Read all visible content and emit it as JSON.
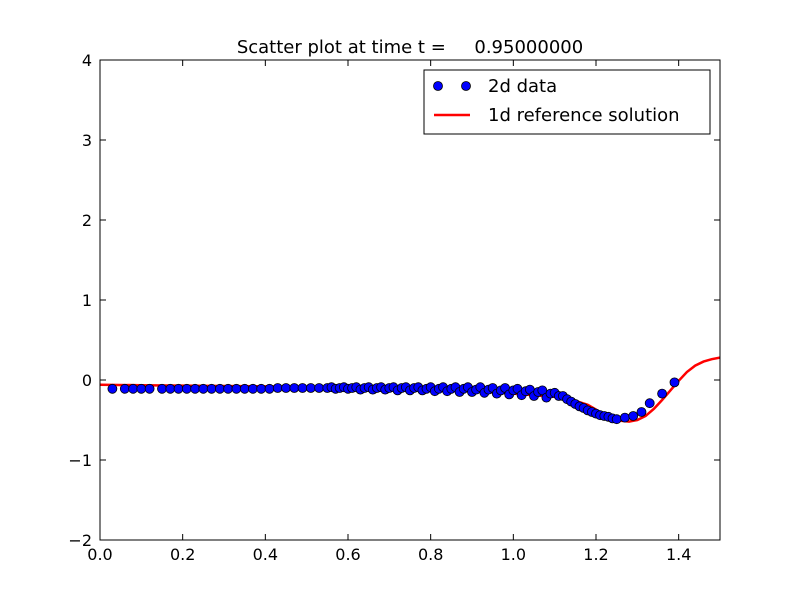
{
  "chart_data": {
    "type": "scatter",
    "title": "Scatter plot at time t =     0.95000000",
    "xlabel": "",
    "ylabel": "",
    "xlim": [
      0.0,
      1.5
    ],
    "ylim": [
      -2,
      4
    ],
    "xticks": [
      0.0,
      0.2,
      0.4,
      0.6,
      0.8,
      1.0,
      1.2,
      1.4
    ],
    "xtick_labels": [
      "0.0",
      "0.2",
      "0.4",
      "0.6",
      "0.8",
      "1.0",
      "1.2",
      "1.4"
    ],
    "yticks": [
      -2,
      -1,
      0,
      1,
      2,
      3,
      4
    ],
    "ytick_labels": [
      "−2",
      "−1",
      "0",
      "1",
      "2",
      "3",
      "4"
    ],
    "grid": false,
    "legend_position": "top-right",
    "series": [
      {
        "name": "2d data",
        "kind": "scatter",
        "color": "#0000ff",
        "points": [
          [
            0.03,
            -0.11
          ],
          [
            0.06,
            -0.11
          ],
          [
            0.08,
            -0.11
          ],
          [
            0.1,
            -0.11
          ],
          [
            0.12,
            -0.11
          ],
          [
            0.15,
            -0.11
          ],
          [
            0.17,
            -0.11
          ],
          [
            0.19,
            -0.11
          ],
          [
            0.21,
            -0.11
          ],
          [
            0.23,
            -0.11
          ],
          [
            0.25,
            -0.11
          ],
          [
            0.27,
            -0.11
          ],
          [
            0.29,
            -0.11
          ],
          [
            0.31,
            -0.11
          ],
          [
            0.33,
            -0.11
          ],
          [
            0.35,
            -0.11
          ],
          [
            0.37,
            -0.11
          ],
          [
            0.39,
            -0.11
          ],
          [
            0.41,
            -0.11
          ],
          [
            0.43,
            -0.1
          ],
          [
            0.45,
            -0.1
          ],
          [
            0.47,
            -0.1
          ],
          [
            0.49,
            -0.1
          ],
          [
            0.51,
            -0.1
          ],
          [
            0.53,
            -0.1
          ],
          [
            0.55,
            -0.1
          ],
          [
            0.56,
            -0.09
          ],
          [
            0.57,
            -0.11
          ],
          [
            0.58,
            -0.1
          ],
          [
            0.59,
            -0.09
          ],
          [
            0.6,
            -0.11
          ],
          [
            0.61,
            -0.1
          ],
          [
            0.62,
            -0.09
          ],
          [
            0.63,
            -0.12
          ],
          [
            0.64,
            -0.1
          ],
          [
            0.65,
            -0.09
          ],
          [
            0.66,
            -0.12
          ],
          [
            0.67,
            -0.1
          ],
          [
            0.68,
            -0.09
          ],
          [
            0.69,
            -0.12
          ],
          [
            0.7,
            -0.1
          ],
          [
            0.71,
            -0.09
          ],
          [
            0.72,
            -0.13
          ],
          [
            0.73,
            -0.1
          ],
          [
            0.74,
            -0.09
          ],
          [
            0.75,
            -0.13
          ],
          [
            0.76,
            -0.1
          ],
          [
            0.77,
            -0.09
          ],
          [
            0.78,
            -0.13
          ],
          [
            0.79,
            -0.11
          ],
          [
            0.8,
            -0.09
          ],
          [
            0.81,
            -0.14
          ],
          [
            0.82,
            -0.11
          ],
          [
            0.83,
            -0.09
          ],
          [
            0.84,
            -0.14
          ],
          [
            0.85,
            -0.11
          ],
          [
            0.86,
            -0.09
          ],
          [
            0.87,
            -0.15
          ],
          [
            0.88,
            -0.11
          ],
          [
            0.89,
            -0.09
          ],
          [
            0.9,
            -0.15
          ],
          [
            0.91,
            -0.12
          ],
          [
            0.92,
            -0.09
          ],
          [
            0.93,
            -0.16
          ],
          [
            0.94,
            -0.12
          ],
          [
            0.95,
            -0.1
          ],
          [
            0.96,
            -0.17
          ],
          [
            0.97,
            -0.13
          ],
          [
            0.98,
            -0.1
          ],
          [
            0.99,
            -0.18
          ],
          [
            1.0,
            -0.13
          ],
          [
            1.01,
            -0.11
          ],
          [
            1.02,
            -0.19
          ],
          [
            1.03,
            -0.14
          ],
          [
            1.04,
            -0.12
          ],
          [
            1.05,
            -0.2
          ],
          [
            1.06,
            -0.15
          ],
          [
            1.07,
            -0.13
          ],
          [
            1.08,
            -0.22
          ],
          [
            1.09,
            -0.17
          ],
          [
            1.1,
            -0.16
          ],
          [
            1.11,
            -0.2
          ],
          [
            1.12,
            -0.2
          ],
          [
            1.13,
            -0.24
          ],
          [
            1.14,
            -0.27
          ],
          [
            1.15,
            -0.3
          ],
          [
            1.16,
            -0.33
          ],
          [
            1.17,
            -0.35
          ],
          [
            1.18,
            -0.38
          ],
          [
            1.19,
            -0.4
          ],
          [
            1.2,
            -0.42
          ],
          [
            1.21,
            -0.44
          ],
          [
            1.22,
            -0.45
          ],
          [
            1.23,
            -0.46
          ],
          [
            1.24,
            -0.48
          ],
          [
            1.25,
            -0.49
          ],
          [
            1.27,
            -0.47
          ],
          [
            1.29,
            -0.45
          ],
          [
            1.31,
            -0.4
          ],
          [
            1.33,
            -0.29
          ],
          [
            1.36,
            -0.17
          ],
          [
            1.39,
            -0.03
          ]
        ]
      },
      {
        "name": "1d reference solution",
        "kind": "line",
        "color": "#ff0000",
        "points": [
          [
            0.0,
            -0.06
          ],
          [
            0.1,
            -0.065
          ],
          [
            0.2,
            -0.07
          ],
          [
            0.3,
            -0.075
          ],
          [
            0.4,
            -0.08
          ],
          [
            0.5,
            -0.085
          ],
          [
            0.6,
            -0.09
          ],
          [
            0.7,
            -0.1
          ],
          [
            0.8,
            -0.12
          ],
          [
            0.9,
            -0.14
          ],
          [
            1.0,
            -0.17
          ],
          [
            1.05,
            -0.19
          ],
          [
            1.1,
            -0.21
          ],
          [
            1.15,
            -0.26
          ],
          [
            1.18,
            -0.31
          ],
          [
            1.2,
            -0.37
          ],
          [
            1.22,
            -0.44
          ],
          [
            1.24,
            -0.49
          ],
          [
            1.26,
            -0.51
          ],
          [
            1.28,
            -0.52
          ],
          [
            1.3,
            -0.5
          ],
          [
            1.32,
            -0.45
          ],
          [
            1.34,
            -0.36
          ],
          [
            1.36,
            -0.25
          ],
          [
            1.38,
            -0.13
          ],
          [
            1.4,
            -0.01
          ],
          [
            1.42,
            0.1
          ],
          [
            1.44,
            0.18
          ],
          [
            1.46,
            0.23
          ],
          [
            1.48,
            0.26
          ],
          [
            1.5,
            0.28
          ]
        ]
      }
    ]
  }
}
